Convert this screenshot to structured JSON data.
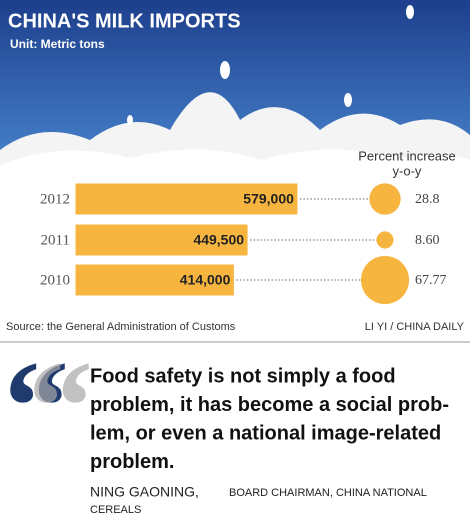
{
  "chart_data": {
    "type": "bar",
    "title": "CHINA'S MILK IMPORTS",
    "subtitle": "Unit: Metric tons",
    "categories": [
      "2012",
      "2011",
      "2010"
    ],
    "values": [
      579000,
      449500,
      414000
    ],
    "value_labels": [
      "579,000",
      "449,500",
      "414,000"
    ],
    "color": "#f6b53f",
    "xlim": [
      0,
      600000
    ],
    "bubbles": {
      "name_lines": [
        "Percent increase",
        "y-o-y"
      ],
      "values": [
        28.8,
        8.6,
        67.77
      ],
      "value_labels": [
        "28.8",
        "8.60",
        "67.77"
      ],
      "color": "#f6b53f"
    },
    "source": "Source: the General Administration of Customs",
    "credit": "LI YI / CHINA DAILY"
  },
  "quote": {
    "lines": [
      "Food safety is not simply a food",
      "problem, it has become a social prob-",
      "lem, or even a national image-related",
      "problem."
    ],
    "name": "NING GAONING,",
    "title_lines": [
      "BOARD CHAIRMAN, CHINA NATIONAL",
      "CEREALS"
    ]
  }
}
